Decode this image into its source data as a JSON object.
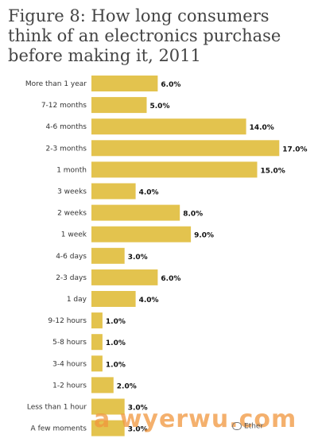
{
  "title_lines": [
    "Figure 8: How long consumers",
    "think of an electronics purchase",
    "before making it, 2011"
  ],
  "chart_data": {
    "type": "bar",
    "orientation": "horizontal",
    "title": "Figure 8: How long consumers think of an electronics purchase before making it, 2011",
    "categories": [
      "More than 1 year",
      "7-12 months",
      "4-6 months",
      "2-3 months",
      "1 month",
      "3 weeks",
      "2 weeks",
      "1 week",
      "4-6 days",
      "2-3 days",
      "1 day",
      "9-12 hours",
      "5-8 hours",
      "3-4 hours",
      "1-2 hours",
      "Less than 1 hour",
      "A few moments"
    ],
    "values": [
      6.0,
      5.0,
      14.0,
      17.0,
      15.0,
      4.0,
      8.0,
      9.0,
      3.0,
      6.0,
      4.0,
      1.0,
      1.0,
      1.0,
      2.0,
      3.0,
      3.0
    ],
    "value_labels": [
      "6.0%",
      "5.0%",
      "14.0%",
      "17.0%",
      "15.0%",
      "4.0%",
      "8.0%",
      "9.0%",
      "3.0%",
      "6.0%",
      "4.0%",
      "1.0%",
      "1.0%",
      "1.0%",
      "2.0%",
      "3.0%",
      "3.0%"
    ],
    "bar_color": "#e3c34e",
    "grid": false
  },
  "watermark": {
    "text": "a wyerwu.com",
    "wechat_text": "Ether"
  }
}
